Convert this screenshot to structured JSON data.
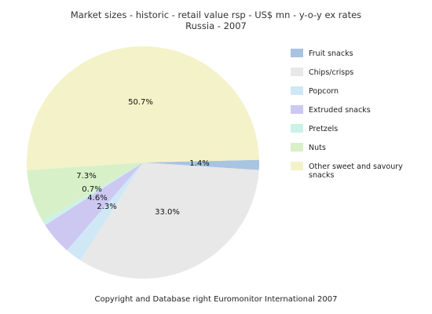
{
  "chart_data": {
    "type": "pie",
    "title": "Market sizes  - historic  - retail value rsp  - US$ mn  - y-o-y ex rates",
    "subtitle": "Russia - 2007",
    "slices": [
      {
        "name": "Fruit snacks",
        "value": 1.4,
        "label": "1.4%",
        "color": "#a8c4e0"
      },
      {
        "name": "Chips/crisps",
        "value": 33.0,
        "label": "33.0%",
        "color": "#e8e8e8"
      },
      {
        "name": "Popcorn",
        "value": 2.3,
        "label": "2.3%",
        "color": "#d0e8f6"
      },
      {
        "name": "Extruded snacks",
        "value": 4.6,
        "label": "4.6%",
        "color": "#cdc8f2"
      },
      {
        "name": "Pretzels",
        "value": 0.7,
        "label": "0.7%",
        "color": "#ccf2e8"
      },
      {
        "name": "Nuts",
        "value": 7.3,
        "label": "7.3%",
        "color": "#d8f0c8"
      },
      {
        "name": "Other sweet and savoury snacks",
        "legend_lines": [
          "Other sweet and savoury",
          "snacks"
        ],
        "value": 50.7,
        "label": "50.7%",
        "color": "#f4f2c8"
      }
    ],
    "legend_placement": "right"
  },
  "footer": {
    "copyright": "Copyright and Database right Euromonitor International 2007"
  }
}
